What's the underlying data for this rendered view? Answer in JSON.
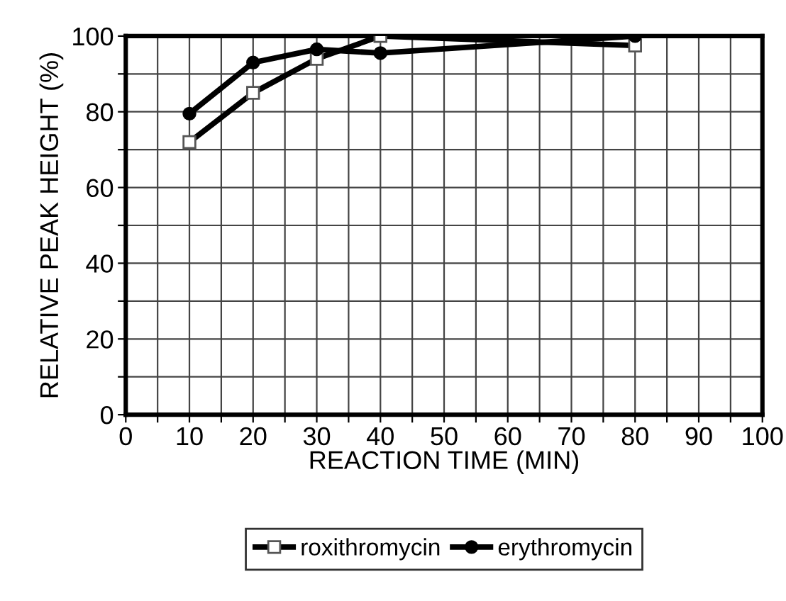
{
  "chart_data": {
    "type": "line",
    "xlabel": "REACTION TIME (MIN)",
    "ylabel": "RELATIVE PEAK HEIGHT (%)",
    "x": [
      10,
      20,
      30,
      40,
      80
    ],
    "series": [
      {
        "name": "roxithromycin",
        "color": "#000000",
        "marker": "square",
        "values": [
          72,
          85,
          94,
          100,
          97.5
        ]
      },
      {
        "name": "erythromycin",
        "color": "#000000",
        "marker": "circle",
        "values": [
          79.5,
          93,
          96.5,
          95.5,
          100
        ]
      }
    ],
    "xlim": [
      0,
      100
    ],
    "xticks": [
      0,
      {
        "value": 5,
        "label": null
      },
      10,
      {
        "value": 15,
        "label": null
      },
      20,
      {
        "value": 25,
        "label": null
      },
      30,
      {
        "value": 35,
        "label": null
      },
      40,
      {
        "value": 45,
        "label": null
      },
      50,
      {
        "value": 55,
        "label": null
      },
      60,
      {
        "value": 65,
        "label": null
      },
      70,
      {
        "value": 75,
        "label": null
      },
      80,
      {
        "value": 85,
        "label": null
      },
      90,
      {
        "value": 95,
        "label": null
      },
      100
    ],
    "ylim": [
      0,
      100
    ],
    "yticks": [
      0,
      {
        "value": 10,
        "label": null
      },
      20,
      {
        "value": 30,
        "label": null
      },
      40,
      {
        "value": 50,
        "label": null
      },
      60,
      {
        "value": 70,
        "label": null
      },
      80,
      {
        "value": 90,
        "label": null
      },
      100
    ],
    "grid": true,
    "legend": "bottom",
    "line_style": "solid"
  }
}
